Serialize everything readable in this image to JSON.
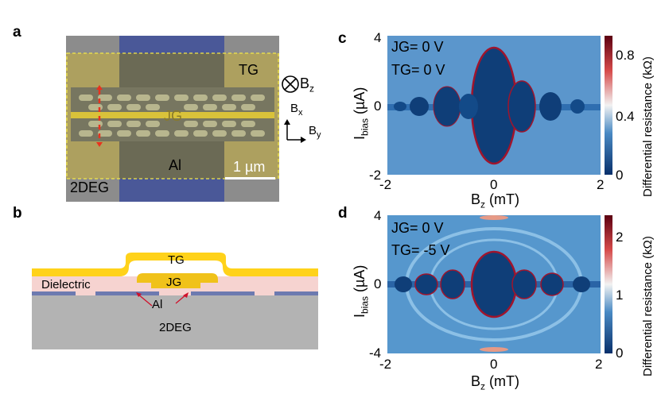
{
  "panel_letters": {
    "a": "a",
    "b": "b",
    "c": "c",
    "d": "d"
  },
  "panel_a": {
    "tg": "TG",
    "jg": "JG",
    "al": "Al",
    "twodeg": "2DEG",
    "scale": "1 µm",
    "bz_main": "B",
    "bz_sub": "z",
    "bx_main": "B",
    "bx_sub": "x",
    "by_main": "B",
    "by_sub": "y"
  },
  "panel_b": {
    "tg": "TG",
    "jg": "JG",
    "dielectric": "Dielectric",
    "al": "Al",
    "twodeg": "2DEG"
  },
  "panel_c": {
    "annot_jg": "JG= 0 V",
    "annot_tg": "TG= 0 V",
    "yticks": [
      "4",
      "0",
      "-2"
    ],
    "xticks": [
      "-2",
      "0",
      "2"
    ],
    "ylabel_main": "I",
    "ylabel_sub": "bias",
    "ylabel_unit": " (µA)",
    "xlabel_main": "B",
    "xlabel_sub": "z",
    "xlabel_unit": " (mT)",
    "cbar_ticks": [
      "0.8",
      "0.4",
      "0"
    ],
    "cbar_label": "Differential resistance (kΩ)"
  },
  "panel_d": {
    "annot_jg": "JG= 0 V",
    "annot_tg": "TG= -5 V",
    "yticks": [
      "4",
      "0",
      "-4"
    ],
    "xticks": [
      "-2",
      "0",
      "2"
    ],
    "ylabel_main": "I",
    "ylabel_sub": "bias",
    "ylabel_unit": " (µA)",
    "xlabel_main": "B",
    "xlabel_sub": "z",
    "xlabel_unit": " (mT)",
    "cbar_ticks": [
      "2",
      "1",
      "0"
    ],
    "cbar_label": "Differential resistance (kΩ)"
  },
  "colors": {
    "map_bg": "#5b96cc",
    "lobe": "#0f3e78",
    "edge": "#a0142c",
    "tg_yellow": "#ffd21a",
    "jg_yellow": "#f0c21a",
    "dielectric": "#f6d3d0",
    "al_blue": "#6d7ab0",
    "substrate": "#b0b0b0",
    "sem_blue": "#4a5898"
  }
}
